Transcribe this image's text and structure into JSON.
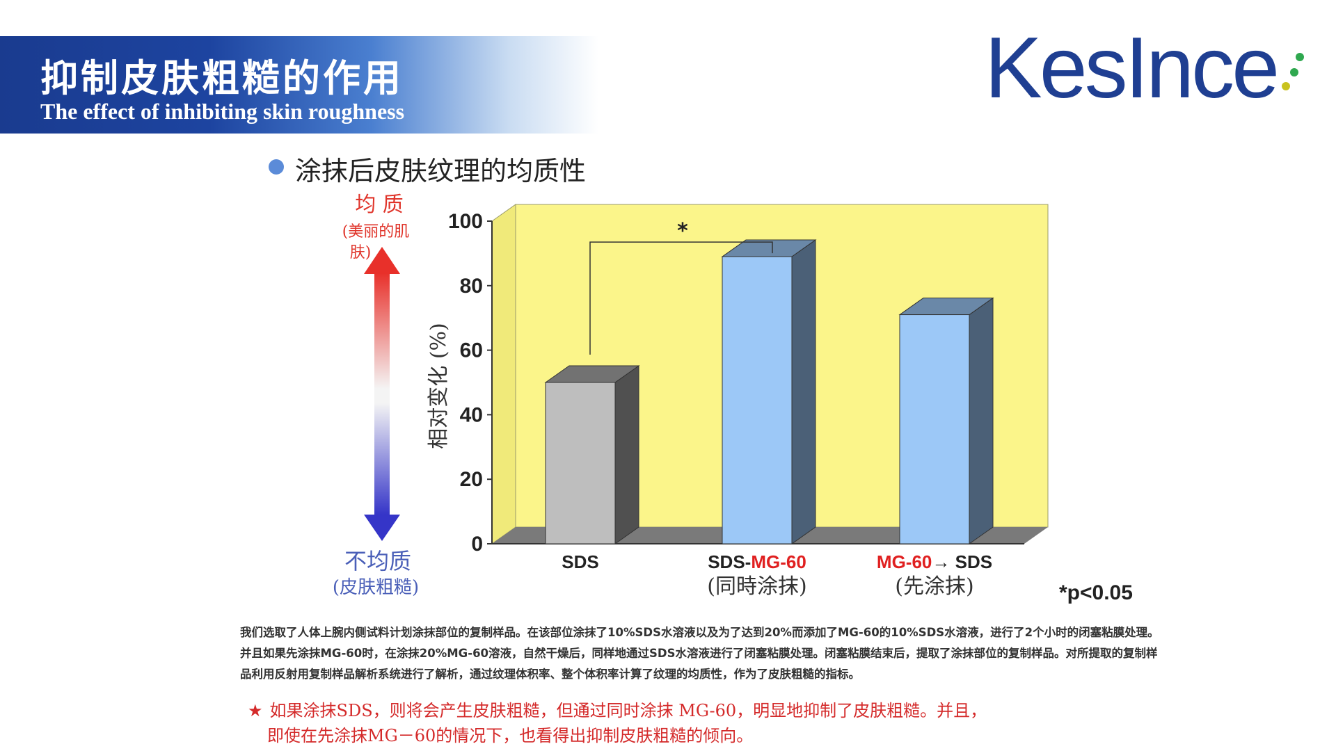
{
  "header": {
    "title": "抑制皮肤粗糙的作用",
    "subtitle": "The effect of inhibiting skin roughness"
  },
  "logo": {
    "text": "KesInce"
  },
  "section": {
    "heading": "涂抹后皮肤纹理的均质性"
  },
  "scale_labels": {
    "top_line1": "均 质",
    "top_line2": "(美丽的肌",
    "top_line3": "肤)",
    "bottom_line1": "不均质",
    "bottom_line2": "(皮肤粗糙)"
  },
  "chart_data": {
    "type": "bar",
    "ylabel": "相对变化 (%)",
    "ylim": [
      0,
      100
    ],
    "yticks": [
      "0",
      "20",
      "40",
      "60",
      "80",
      "100"
    ],
    "categories": [
      {
        "prefix": "",
        "highlight": "",
        "suffix": "SDS",
        "sub": "",
        "value": 50,
        "color": "#bebebe"
      },
      {
        "prefix": "SDS-",
        "highlight": "MG-60",
        "suffix": "",
        "sub": "(同時涂抹)",
        "value": 89,
        "color": "#9cc8f7"
      },
      {
        "prefix": "",
        "highlight": "MG-60",
        "suffix": "→ SDS",
        "sub": "(先涂抹)",
        "value": 71,
        "color": "#9cc8f7"
      }
    ],
    "significance": {
      "marker": "*",
      "between": [
        0,
        1
      ],
      "note": "*p<0.05"
    },
    "colors": {
      "background": "#fbf58a",
      "floor": "#7a7a7a",
      "highlight_text": "#e02020",
      "scale_top": "#e8302a",
      "scale_bottom": "#3535c8"
    }
  },
  "method_text": "我们选取了人体上腕内侧试料计划涂抹部位的复制样品。在该部位涂抹了10%SDS水溶液以及为了达到20%而添加了MG-60的10%SDS水溶液，进行了2个小时的闭塞粘膜处理。并且如果先涂抹MG-60时，在涂抹20%MG-60溶液，自然干燥后，同样地通过SDS水溶液进行了闭塞粘膜处理。闭塞粘膜结束后，提取了涂抹部位的复制样品。对所提取的复制样品利用反射用复制样品解析系统进行了解析，通过纹理体积率、整个体积率计算了纹理的均质性，作为了皮肤粗糙的指标。",
  "conclusion": {
    "star": "★",
    "line1": "如果涂抹SDS，则将会产生皮肤粗糙，但通过同时涂抹 MG-60，明显地抑制了皮肤粗糙。并且，",
    "line2": "即使在先涂抹MG－60的情况下，也看得出抑制皮肤粗糙的倾向。"
  }
}
